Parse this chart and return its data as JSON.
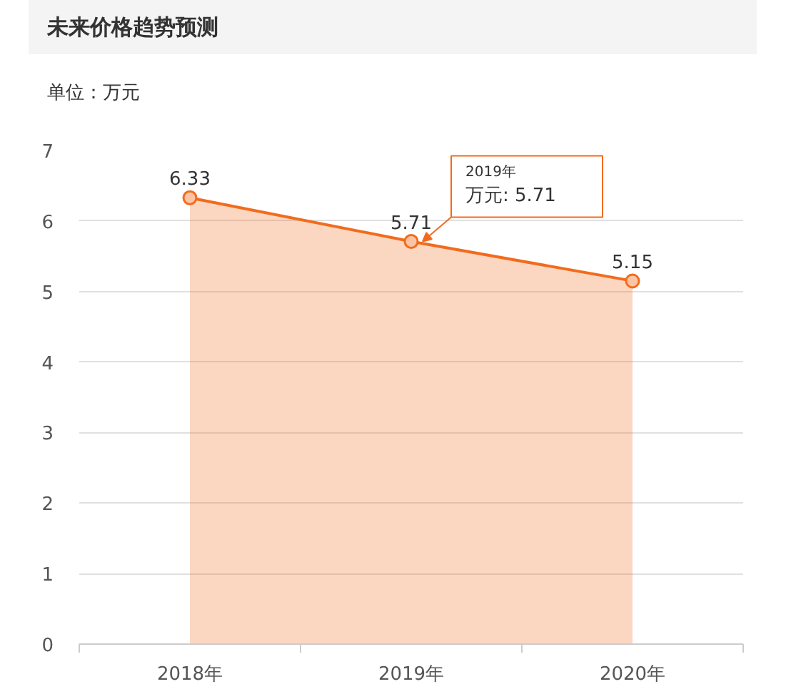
{
  "chart_data": {
    "type": "area",
    "title": "未来价格趋势预测",
    "subtitle": "单位：万元",
    "categories": [
      "2018年",
      "2019年",
      "2020年"
    ],
    "series": [
      {
        "color": "#f26b1d",
        "values": [
          6.33,
          5.71,
          5.15
        ]
      }
    ],
    "ylim": [
      0,
      7
    ],
    "yticks": [
      0,
      1,
      2,
      3,
      4,
      5,
      6,
      7
    ],
    "grid": "y",
    "marker": "circle",
    "data_labels": true,
    "annotations": [
      "2019年",
      {
        "text": "万元: 5.71",
        "x": "2019年",
        "y": 5.71
      }
    ]
  }
}
